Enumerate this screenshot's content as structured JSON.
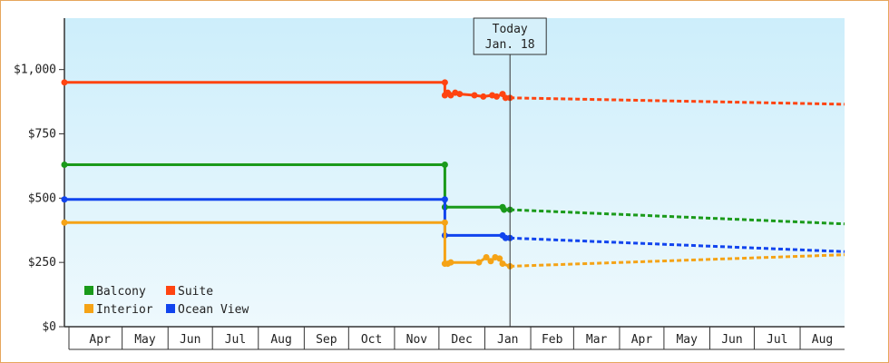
{
  "chart_data": {
    "type": "line",
    "today_label": "Today",
    "today_date": "Jan. 18",
    "today_x": "2024-01-18",
    "x_range": [
      "2023-03-23",
      "2024-08-31"
    ],
    "y_range": [
      0,
      1200
    ],
    "y_ticks": [
      {
        "value": 0,
        "label": "$0"
      },
      {
        "value": 250,
        "label": "$250"
      },
      {
        "value": 500,
        "label": "$500"
      },
      {
        "value": 750,
        "label": "$750"
      },
      {
        "value": 1000,
        "label": "$1,000"
      }
    ],
    "months": [
      {
        "label": "Apr",
        "start": "2023-04-01",
        "end": "2023-05-01"
      },
      {
        "label": "May",
        "start": "2023-05-01",
        "end": "2023-06-01"
      },
      {
        "label": "Jun",
        "start": "2023-06-01",
        "end": "2023-07-01"
      },
      {
        "label": "Jul",
        "start": "2023-07-01",
        "end": "2023-08-01"
      },
      {
        "label": "Aug",
        "start": "2023-08-01",
        "end": "2023-09-01"
      },
      {
        "label": "Sep",
        "start": "2023-09-01",
        "end": "2023-10-01"
      },
      {
        "label": "Oct",
        "start": "2023-10-01",
        "end": "2023-11-01"
      },
      {
        "label": "Nov",
        "start": "2023-11-01",
        "end": "2023-12-01"
      },
      {
        "label": "Dec",
        "start": "2023-12-01",
        "end": "2024-01-01"
      },
      {
        "label": "Jan",
        "start": "2024-01-01",
        "end": "2024-02-01"
      },
      {
        "label": "Feb",
        "start": "2024-02-01",
        "end": "2024-03-01"
      },
      {
        "label": "Mar",
        "start": "2024-03-01",
        "end": "2024-04-01"
      },
      {
        "label": "Apr",
        "start": "2024-04-01",
        "end": "2024-05-01"
      },
      {
        "label": "May",
        "start": "2024-05-01",
        "end": "2024-06-01"
      },
      {
        "label": "Jun",
        "start": "2024-06-01",
        "end": "2024-07-01"
      },
      {
        "label": "Jul",
        "start": "2024-07-01",
        "end": "2024-08-01"
      },
      {
        "label": "Aug",
        "start": "2024-08-01",
        "end": "2024-09-01"
      }
    ],
    "legend": [
      {
        "label": "Balcony",
        "color": "#1a9a1a"
      },
      {
        "label": "Suite",
        "color": "#ff4411"
      },
      {
        "label": "Interior",
        "color": "#f5a316"
      },
      {
        "label": "Ocean View",
        "color": "#1144ee"
      }
    ],
    "series": [
      {
        "name": "Suite",
        "color": "#ff4411",
        "points": [
          {
            "x": "2023-03-23",
            "y": 950
          },
          {
            "x": "2023-12-05",
            "y": 950
          },
          {
            "x": "2023-12-05",
            "y": 900
          },
          {
            "x": "2023-12-07",
            "y": 910
          },
          {
            "x": "2023-12-09",
            "y": 900
          },
          {
            "x": "2023-12-12",
            "y": 910
          },
          {
            "x": "2023-12-15",
            "y": 905
          },
          {
            "x": "2023-12-25",
            "y": 900
          },
          {
            "x": "2023-12-31",
            "y": 895
          },
          {
            "x": "2024-01-06",
            "y": 900
          },
          {
            "x": "2024-01-09",
            "y": 895
          },
          {
            "x": "2024-01-13",
            "y": 905
          },
          {
            "x": "2024-01-15",
            "y": 890
          },
          {
            "x": "2024-01-18",
            "y": 890
          }
        ],
        "forecast": [
          {
            "x": "2024-01-18",
            "y": 890
          },
          {
            "x": "2024-08-31",
            "y": 865
          }
        ]
      },
      {
        "name": "Balcony",
        "color": "#1a9a1a",
        "points": [
          {
            "x": "2023-03-23",
            "y": 630
          },
          {
            "x": "2023-12-05",
            "y": 630
          },
          {
            "x": "2023-12-05",
            "y": 465
          },
          {
            "x": "2024-01-13",
            "y": 465
          },
          {
            "x": "2024-01-14",
            "y": 455
          },
          {
            "x": "2024-01-18",
            "y": 455
          }
        ],
        "forecast": [
          {
            "x": "2024-01-18",
            "y": 455
          },
          {
            "x": "2024-08-31",
            "y": 400
          }
        ]
      },
      {
        "name": "Ocean View",
        "color": "#1144ee",
        "points": [
          {
            "x": "2023-03-23",
            "y": 495
          },
          {
            "x": "2023-12-05",
            "y": 495
          },
          {
            "x": "2023-12-05",
            "y": 355
          },
          {
            "x": "2024-01-13",
            "y": 355
          },
          {
            "x": "2024-01-15",
            "y": 345
          },
          {
            "x": "2024-01-18",
            "y": 345
          }
        ],
        "forecast": [
          {
            "x": "2024-01-18",
            "y": 345
          },
          {
            "x": "2024-08-31",
            "y": 292
          }
        ]
      },
      {
        "name": "Interior",
        "color": "#f5a316",
        "points": [
          {
            "x": "2023-03-23",
            "y": 405
          },
          {
            "x": "2023-12-05",
            "y": 405
          },
          {
            "x": "2023-12-05",
            "y": 245
          },
          {
            "x": "2023-12-07",
            "y": 245
          },
          {
            "x": "2023-12-09",
            "y": 250
          },
          {
            "x": "2023-12-28",
            "y": 250
          },
          {
            "x": "2024-01-02",
            "y": 270
          },
          {
            "x": "2024-01-05",
            "y": 255
          },
          {
            "x": "2024-01-08",
            "y": 270
          },
          {
            "x": "2024-01-11",
            "y": 265
          },
          {
            "x": "2024-01-13",
            "y": 245
          },
          {
            "x": "2024-01-18",
            "y": 235
          }
        ],
        "forecast": [
          {
            "x": "2024-01-18",
            "y": 235
          },
          {
            "x": "2024-08-31",
            "y": 280
          }
        ]
      }
    ]
  }
}
